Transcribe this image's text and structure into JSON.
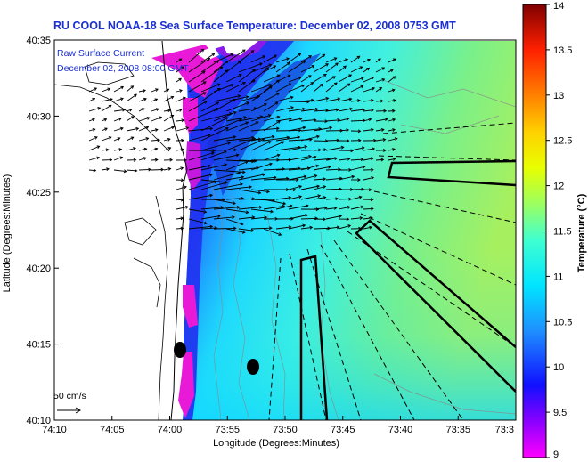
{
  "title": "RU COOL  NOAA-18  Sea Surface Temperature:  December 02, 2008 0753 GMT",
  "overlay": {
    "line1": "Raw Surface Current",
    "line2": "December 02, 2008 08:00 GMT"
  },
  "axes": {
    "xlabel": "Longitude (Degrees:Minutes)",
    "ylabel": "Latitude (Degrees:Minutes)",
    "x_ticks": [
      "74:10",
      "74:05",
      "74:00",
      "73:55",
      "73:50",
      "73:45",
      "73:40",
      "73:35",
      "73:3"
    ],
    "y_ticks": [
      "40:35",
      "40:30",
      "40:25",
      "40:20",
      "40:15",
      "40:10"
    ]
  },
  "scale_label": "50 cm/s",
  "colorbar": {
    "label": "Temperature (°C)",
    "ticks": [
      "14",
      "13.5",
      "13",
      "12.5",
      "12",
      "11.5",
      "11",
      "10.5",
      "10",
      "9.5",
      "9"
    ],
    "min": 9,
    "max": 14
  },
  "colors": {
    "title": "#1a2fd6",
    "overlay_text": "#1a2fd6"
  },
  "map_features": {
    "description_name": "sst-field",
    "land": "New Jersey coast",
    "buoys": 2
  }
}
